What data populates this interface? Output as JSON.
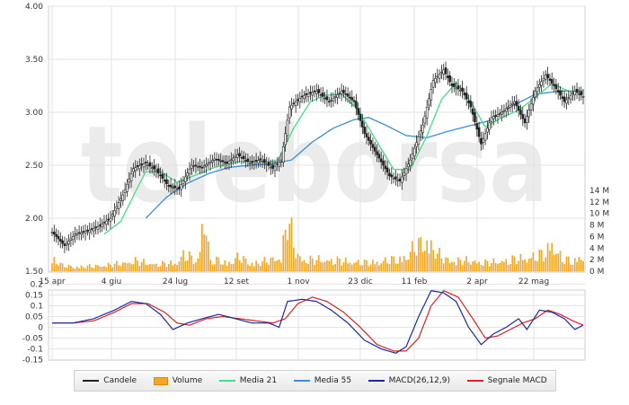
{
  "watermark": "teleborsa",
  "colors": {
    "candle": "#222222",
    "volume": "#f5a623",
    "ma21": "#44dd88",
    "ma55": "#3a8fd8",
    "macd": "#1a2aa0",
    "signal": "#dd2222",
    "grid": "#e3e3e3"
  },
  "legend": [
    {
      "label": "Candele",
      "color": "#222222",
      "kind": "line"
    },
    {
      "label": "Volume",
      "color": "#f5a623",
      "kind": "box"
    },
    {
      "label": "Media 21",
      "color": "#44dd88",
      "kind": "line"
    },
    {
      "label": "Media 55",
      "color": "#3a8fd8",
      "kind": "line"
    },
    {
      "label": "MACD(26,12,9)",
      "color": "#1a2aa0",
      "kind": "line"
    },
    {
      "label": "Segnale MACD",
      "color": "#dd2222",
      "kind": "line"
    }
  ],
  "chart_data": {
    "type": "line",
    "x_ticks": [
      "15 apr",
      "4 giu",
      "24 lug",
      "12 set",
      "1 nov",
      "23 dic",
      "11 feb",
      "2 apr",
      "22 mag"
    ],
    "price_axis": {
      "ticks": [
        "4.00",
        "3.50",
        "3.00",
        "2.50",
        "2.00",
        "1.50"
      ],
      "ylim": [
        1.5,
        4.0
      ]
    },
    "volume_axis": {
      "ticks": [
        "14 M",
        "12 M",
        "10 M",
        "8 M",
        "6 M",
        "4 M",
        "2 M",
        "0 M"
      ],
      "ylim": [
        0,
        14
      ]
    },
    "macd_axis": {
      "ticks": [
        "0.2",
        "0.15",
        "0.1",
        "0.05",
        "0",
        "-0.05",
        "-0.1",
        "-0.15"
      ],
      "ylim": [
        -0.15,
        0.2
      ]
    },
    "price_keypoints": [
      [
        0,
        1.87
      ],
      [
        6,
        1.74
      ],
      [
        11,
        1.85
      ],
      [
        17,
        1.88
      ],
      [
        22,
        1.92
      ],
      [
        28,
        2.0
      ],
      [
        34,
        2.22
      ],
      [
        39,
        2.47
      ],
      [
        45,
        2.52
      ],
      [
        50,
        2.45
      ],
      [
        56,
        2.3
      ],
      [
        61,
        2.28
      ],
      [
        67,
        2.5
      ],
      [
        72,
        2.48
      ],
      [
        78,
        2.56
      ],
      [
        84,
        2.52
      ],
      [
        89,
        2.6
      ],
      [
        95,
        2.52
      ],
      [
        100,
        2.55
      ],
      [
        106,
        2.47
      ],
      [
        110,
        2.55
      ],
      [
        114,
        3.05
      ],
      [
        120,
        3.15
      ],
      [
        127,
        3.2
      ],
      [
        133,
        3.1
      ],
      [
        139,
        3.2
      ],
      [
        145,
        3.1
      ],
      [
        150,
        2.8
      ],
      [
        156,
        2.6
      ],
      [
        162,
        2.4
      ],
      [
        167,
        2.35
      ],
      [
        172,
        2.55
      ],
      [
        178,
        2.88
      ],
      [
        183,
        3.3
      ],
      [
        188,
        3.4
      ],
      [
        192,
        3.25
      ],
      [
        197,
        3.2
      ],
      [
        201,
        3.05
      ],
      [
        206,
        2.7
      ],
      [
        211,
        2.95
      ],
      [
        216,
        3.0
      ],
      [
        222,
        3.1
      ],
      [
        227,
        2.9
      ],
      [
        232,
        3.2
      ],
      [
        237,
        3.35
      ],
      [
        241,
        3.25
      ],
      [
        246,
        3.1
      ],
      [
        251,
        3.2
      ],
      [
        255,
        3.15
      ]
    ],
    "ma21_keypoints": [
      [
        25,
        1.85
      ],
      [
        33,
        1.97
      ],
      [
        40,
        2.25
      ],
      [
        45,
        2.44
      ],
      [
        52,
        2.44
      ],
      [
        60,
        2.34
      ],
      [
        68,
        2.4
      ],
      [
        78,
        2.48
      ],
      [
        88,
        2.53
      ],
      [
        98,
        2.54
      ],
      [
        108,
        2.53
      ],
      [
        116,
        2.85
      ],
      [
        124,
        3.1
      ],
      [
        131,
        3.16
      ],
      [
        139,
        3.17
      ],
      [
        147,
        3.02
      ],
      [
        156,
        2.72
      ],
      [
        164,
        2.46
      ],
      [
        172,
        2.46
      ],
      [
        180,
        2.78
      ],
      [
        187,
        3.12
      ],
      [
        194,
        3.28
      ],
      [
        201,
        3.1
      ],
      [
        208,
        2.86
      ],
      [
        216,
        2.95
      ],
      [
        224,
        3.02
      ],
      [
        232,
        3.14
      ],
      [
        240,
        3.27
      ],
      [
        248,
        3.2
      ],
      [
        255,
        3.18
      ]
    ],
    "ma55_keypoints": [
      [
        45,
        2.0
      ],
      [
        55,
        2.2
      ],
      [
        65,
        2.33
      ],
      [
        75,
        2.42
      ],
      [
        85,
        2.48
      ],
      [
        95,
        2.5
      ],
      [
        105,
        2.51
      ],
      [
        115,
        2.55
      ],
      [
        125,
        2.72
      ],
      [
        135,
        2.85
      ],
      [
        145,
        2.93
      ],
      [
        152,
        2.95
      ],
      [
        160,
        2.88
      ],
      [
        170,
        2.78
      ],
      [
        180,
        2.76
      ],
      [
        190,
        2.82
      ],
      [
        200,
        2.87
      ],
      [
        210,
        2.92
      ],
      [
        220,
        3.05
      ],
      [
        232,
        3.17
      ],
      [
        244,
        3.2
      ],
      [
        255,
        3.2
      ]
    ],
    "volume_keypoints": [
      [
        0,
        2.5
      ],
      [
        5,
        1.0
      ],
      [
        10,
        0.8
      ],
      [
        20,
        0.9
      ],
      [
        30,
        1.2
      ],
      [
        40,
        1.8
      ],
      [
        50,
        1.2
      ],
      [
        60,
        1.5
      ],
      [
        63,
        3.0
      ],
      [
        70,
        1.8
      ],
      [
        73,
        11.5
      ],
      [
        76,
        1.5
      ],
      [
        80,
        2.0
      ],
      [
        85,
        1.5
      ],
      [
        90,
        2.5
      ],
      [
        95,
        1.5
      ],
      [
        100,
        1.5
      ],
      [
        104,
        2.0
      ],
      [
        110,
        2.5
      ],
      [
        113,
        9.5
      ],
      [
        117,
        3.5
      ],
      [
        120,
        2.0
      ],
      [
        130,
        2.0
      ],
      [
        140,
        1.8
      ],
      [
        150,
        1.5
      ],
      [
        160,
        1.8
      ],
      [
        170,
        2.5
      ],
      [
        175,
        4.5
      ],
      [
        180,
        5.5
      ],
      [
        185,
        3.0
      ],
      [
        190,
        2.0
      ],
      [
        200,
        1.8
      ],
      [
        210,
        1.5
      ],
      [
        220,
        2.0
      ],
      [
        230,
        2.5
      ],
      [
        236,
        3.0
      ],
      [
        240,
        5.0
      ],
      [
        245,
        2.0
      ],
      [
        250,
        2.0
      ],
      [
        255,
        2.5
      ]
    ],
    "macd_keypoints": [
      [
        0,
        0.02
      ],
      [
        10,
        0.02
      ],
      [
        20,
        0.04
      ],
      [
        30,
        0.08
      ],
      [
        38,
        0.12
      ],
      [
        45,
        0.11
      ],
      [
        52,
        0.06
      ],
      [
        58,
        -0.01
      ],
      [
        65,
        0.02
      ],
      [
        72,
        0.04
      ],
      [
        80,
        0.06
      ],
      [
        88,
        0.04
      ],
      [
        96,
        0.02
      ],
      [
        104,
        0.02
      ],
      [
        109,
        0.0
      ],
      [
        113,
        0.12
      ],
      [
        120,
        0.13
      ],
      [
        127,
        0.12
      ],
      [
        134,
        0.08
      ],
      [
        142,
        0.02
      ],
      [
        150,
        -0.06
      ],
      [
        158,
        -0.1
      ],
      [
        165,
        -0.12
      ],
      [
        170,
        -0.09
      ],
      [
        176,
        0.05
      ],
      [
        182,
        0.17
      ],
      [
        188,
        0.16
      ],
      [
        194,
        0.12
      ],
      [
        200,
        0.0
      ],
      [
        206,
        -0.08
      ],
      [
        212,
        -0.03
      ],
      [
        218,
        0.0
      ],
      [
        224,
        0.04
      ],
      [
        228,
        -0.01
      ],
      [
        234,
        0.08
      ],
      [
        240,
        0.07
      ],
      [
        246,
        0.04
      ],
      [
        251,
        -0.01
      ],
      [
        255,
        0.01
      ]
    ],
    "signal_keypoints": [
      [
        0,
        0.02
      ],
      [
        10,
        0.02
      ],
      [
        20,
        0.03
      ],
      [
        30,
        0.07
      ],
      [
        38,
        0.11
      ],
      [
        46,
        0.11
      ],
      [
        54,
        0.07
      ],
      [
        60,
        0.02
      ],
      [
        66,
        0.01
      ],
      [
        74,
        0.04
      ],
      [
        82,
        0.05
      ],
      [
        90,
        0.04
      ],
      [
        98,
        0.03
      ],
      [
        106,
        0.02
      ],
      [
        112,
        0.04
      ],
      [
        118,
        0.11
      ],
      [
        125,
        0.14
      ],
      [
        132,
        0.12
      ],
      [
        140,
        0.07
      ],
      [
        148,
        0.0
      ],
      [
        156,
        -0.08
      ],
      [
        164,
        -0.11
      ],
      [
        170,
        -0.11
      ],
      [
        176,
        -0.05
      ],
      [
        182,
        0.1
      ],
      [
        188,
        0.17
      ],
      [
        195,
        0.14
      ],
      [
        202,
        0.04
      ],
      [
        208,
        -0.05
      ],
      [
        214,
        -0.04
      ],
      [
        220,
        -0.01
      ],
      [
        226,
        0.02
      ],
      [
        232,
        0.04
      ],
      [
        238,
        0.08
      ],
      [
        244,
        0.06
      ],
      [
        250,
        0.03
      ],
      [
        255,
        0.01
      ]
    ]
  }
}
